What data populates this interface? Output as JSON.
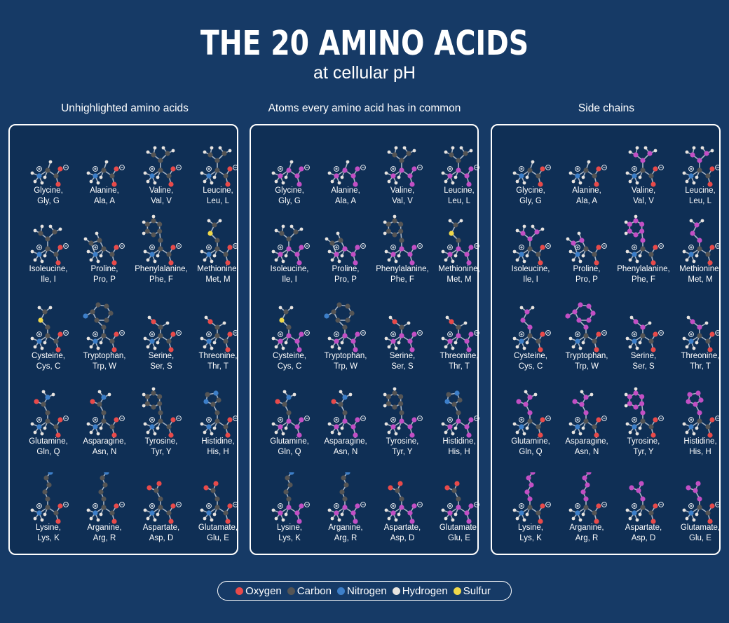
{
  "header": {
    "title": "THE 20 AMINO ACIDS",
    "subtitle": "at cellular pH"
  },
  "colors": {
    "background": "#163a66",
    "panel": "#0f2f55",
    "oxygen": "#e84a4a",
    "carbon": "#555555",
    "nitrogen": "#3d7fc9",
    "hydrogen": "#e8e4e0",
    "sulfur": "#f0d84a",
    "highlight": "#c24fc4"
  },
  "panels": [
    {
      "title": "Unhighlighted amino acids",
      "mode": "none"
    },
    {
      "title": "Atoms every amino acid has in common",
      "mode": "backbone"
    },
    {
      "title": "Side chains",
      "mode": "sidechain"
    }
  ],
  "amino_acids": [
    {
      "name": "Glycine,",
      "abbr": "Gly, G",
      "shape": "small"
    },
    {
      "name": "Alanine,",
      "abbr": "Ala, A",
      "shape": "small"
    },
    {
      "name": "Valine,",
      "abbr": "Val, V",
      "shape": "branch"
    },
    {
      "name": "Leucine,",
      "abbr": "Leu, L",
      "shape": "branch"
    },
    {
      "name": "Isoleucine,",
      "abbr": "Ile, I",
      "shape": "branch"
    },
    {
      "name": "Proline,",
      "abbr": "Pro, P",
      "shape": "ring"
    },
    {
      "name": "Phenylalanine,",
      "abbr": "Phe, F",
      "shape": "aromatic"
    },
    {
      "name": "Methionine,",
      "abbr": "Met, M",
      "shape": "sulfur"
    },
    {
      "name": "Cysteine,",
      "abbr": "Cys, C",
      "shape": "sulfur"
    },
    {
      "name": "Tryptophan,",
      "abbr": "Trp, W",
      "shape": "indole"
    },
    {
      "name": "Serine,",
      "abbr": "Ser, S",
      "shape": "hydroxyl"
    },
    {
      "name": "Threonine,",
      "abbr": "Thr, T",
      "shape": "hydroxyl"
    },
    {
      "name": "Glutamine,",
      "abbr": "Gln, Q",
      "shape": "amide"
    },
    {
      "name": "Asparagine,",
      "abbr": "Asn, N",
      "shape": "amide"
    },
    {
      "name": "Tyrosine,",
      "abbr": "Tyr, Y",
      "shape": "aromatic"
    },
    {
      "name": "Histidine,",
      "abbr": "His, H",
      "shape": "imidazole"
    },
    {
      "name": "Lysine,",
      "abbr": "Lys, K",
      "shape": "long"
    },
    {
      "name": "Arganine,",
      "abbr": "Arg, R",
      "shape": "long"
    },
    {
      "name": "Aspartate,",
      "abbr": "Asp, D",
      "shape": "acid"
    },
    {
      "name": "Glutamate,",
      "abbr": "Glu, E",
      "shape": "acid"
    }
  ],
  "legend": [
    {
      "label": "Oxygen",
      "color": "#e84a4a"
    },
    {
      "label": "Carbon",
      "color": "#555555"
    },
    {
      "label": "Nitrogen",
      "color": "#3d7fc9"
    },
    {
      "label": "Hydrogen",
      "color": "#e8e4e0"
    },
    {
      "label": "Sulfur",
      "color": "#f0d84a"
    }
  ]
}
